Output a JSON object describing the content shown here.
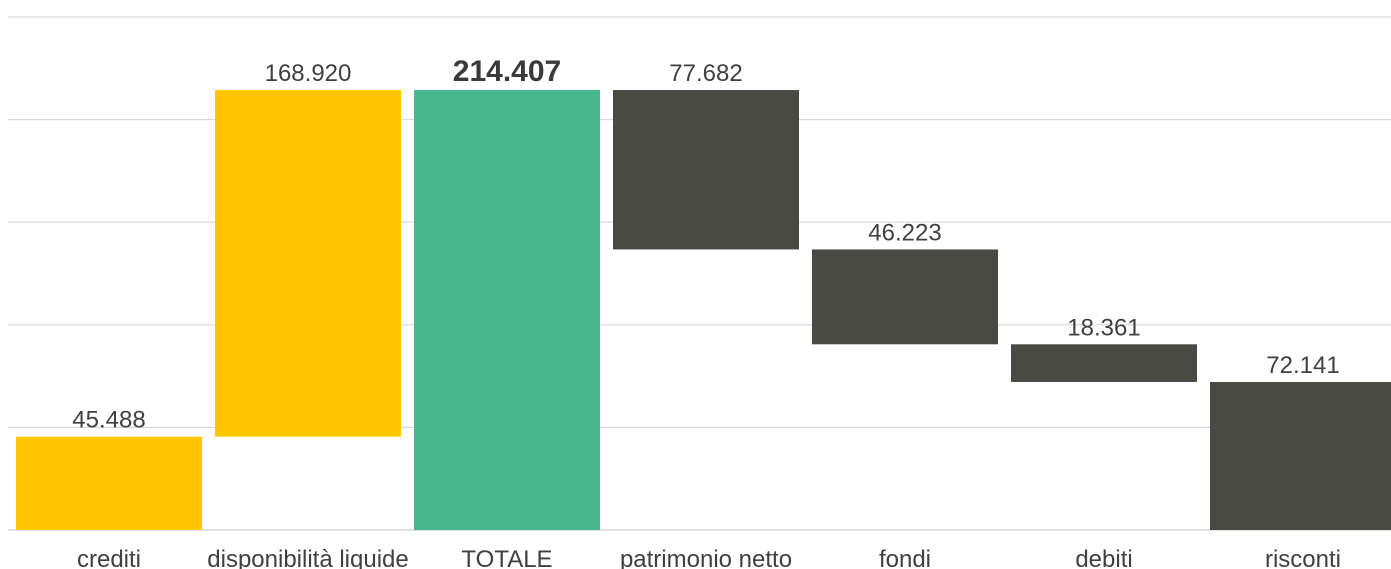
{
  "chart_data": {
    "type": "bar",
    "subtype": "waterfall",
    "categories": [
      "crediti",
      "disponibilità liquide",
      "TOTALE",
      "patrimonio netto",
      "fondi",
      "debiti",
      "risconti"
    ],
    "series": [
      {
        "values": [
          45.488,
          168.92,
          214.407,
          77.682,
          46.223,
          18.361,
          72.141
        ],
        "labels": [
          "45.488",
          "168.920",
          "214.407",
          "77.682",
          "46.223",
          "18.361",
          "72.141"
        ],
        "kinds": [
          "increase",
          "increase",
          "total",
          "decrease",
          "decrease",
          "decrease",
          "decrease"
        ]
      }
    ],
    "ylim": [
      0,
      250
    ],
    "gridlines": [
      0,
      50,
      100,
      150,
      200,
      250
    ],
    "grid": true,
    "legend": "none",
    "colors": {
      "increase": "#FFC600",
      "total": "#47B78E",
      "decrease": "#4A4A45"
    }
  }
}
